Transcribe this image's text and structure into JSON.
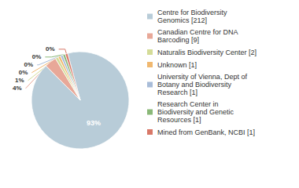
{
  "chart_data": {
    "type": "pie",
    "categories": [
      "Centre for Biodiversity\nGenomics [212]",
      "Canadian Centre for DNA\nBarcoding [9]",
      "Naturalis Biodiversity Center [2]",
      "Unknown [1]",
      "University of Vienna, Dept of\nBotany and Biodiversity\nResearch [1]",
      "Research Center in\nBiodiversity and Genetic\nResources [1]",
      "Mined from GenBank, NCBI [1]"
    ],
    "values": [
      93,
      4,
      1,
      0,
      0,
      0,
      0
    ],
    "value_labels": [
      "93%",
      "4%",
      "1%",
      "0%",
      "0%",
      "0%",
      "0%"
    ],
    "colors": [
      "#b8ccd8",
      "#e8a898",
      "#d4dc98",
      "#f0b870",
      "#a8bcd8",
      "#8ab878",
      "#d87868"
    ],
    "data_labels": true,
    "legend": "right"
  }
}
